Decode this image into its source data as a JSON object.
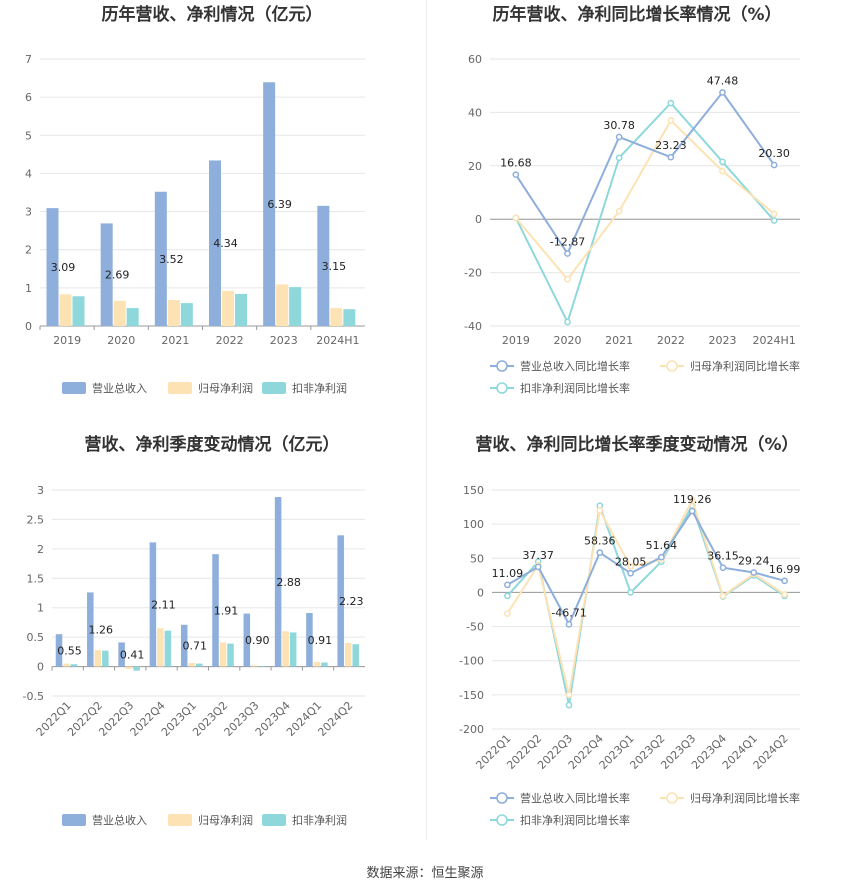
{
  "footer": {
    "source": "数据来源：恒生聚源"
  },
  "colors": {
    "revenue": "#8eaedb",
    "net_profit": "#fde2b4",
    "net_profit_excl": "#8ed8dc"
  },
  "chart_data": [
    {
      "type": "bar",
      "title": "历年营收、净利情况（亿元）",
      "categories": [
        "2019",
        "2020",
        "2021",
        "2022",
        "2023",
        "2024H1"
      ],
      "ylim": [
        0,
        7
      ],
      "yticks": [
        0,
        1,
        2,
        3,
        4,
        5,
        6,
        7
      ],
      "series": [
        {
          "name": "营业总收入",
          "values": [
            3.09,
            2.69,
            3.52,
            4.34,
            6.39,
            3.15
          ],
          "labels": [
            "3.09",
            "2.69",
            "3.52",
            "4.34",
            "6.39",
            "3.15"
          ]
        },
        {
          "name": "归母净利润",
          "values": [
            0.83,
            0.66,
            0.68,
            0.92,
            1.09,
            0.47
          ]
        },
        {
          "name": "扣非净利润",
          "values": [
            0.78,
            0.47,
            0.6,
            0.84,
            1.02,
            0.44
          ]
        }
      ],
      "legend": "bottom",
      "grid": true
    },
    {
      "type": "line",
      "title": "历年营收、净利同比增长率情况（%）",
      "categories": [
        "2019",
        "2020",
        "2021",
        "2022",
        "2023",
        "2024H1"
      ],
      "ylim": [
        -40,
        60
      ],
      "yticks": [
        -40,
        -20,
        0,
        20,
        40,
        60
      ],
      "series": [
        {
          "name": "营业总收入同比增长率",
          "values": [
            16.68,
            -12.87,
            30.78,
            23.23,
            47.48,
            20.3
          ],
          "labels": [
            "16.68",
            "-12.87",
            "30.78",
            "23.23",
            "47.48",
            "20.30"
          ]
        },
        {
          "name": "归母净利润同比增长率",
          "values": [
            0.5,
            -22.5,
            3.0,
            37.0,
            18.0,
            2.0
          ]
        },
        {
          "name": "扣非净利润同比增长率",
          "values": [
            0.5,
            -38.5,
            23.0,
            43.5,
            21.5,
            -0.5
          ]
        }
      ],
      "legend": "bottom",
      "grid": true
    },
    {
      "type": "bar",
      "title": "营收、净利季度变动情况（亿元）",
      "categories": [
        "2022Q1",
        "2022Q2",
        "2022Q3",
        "2022Q4",
        "2023Q1",
        "2023Q2",
        "2023Q3",
        "2023Q4",
        "2024Q1",
        "2024Q2"
      ],
      "ylim": [
        -0.5,
        3
      ],
      "yticks": [
        -0.5,
        0,
        0.5,
        1,
        1.5,
        2,
        2.5,
        3
      ],
      "series": [
        {
          "name": "营业总收入",
          "values": [
            0.55,
            1.26,
            0.41,
            2.11,
            0.71,
            1.91,
            0.9,
            2.88,
            0.91,
            2.23
          ],
          "labels": [
            "0.55",
            "1.26",
            "0.41",
            "2.11",
            "0.71",
            "1.91",
            "0.90",
            "2.88",
            "0.91",
            "2.23"
          ]
        },
        {
          "name": "归母净利润",
          "values": [
            0.05,
            0.28,
            -0.04,
            0.65,
            0.06,
            0.41,
            0.02,
            0.6,
            0.08,
            0.4
          ]
        },
        {
          "name": "扣非净利润",
          "values": [
            0.04,
            0.27,
            -0.07,
            0.61,
            0.05,
            0.39,
            0.01,
            0.58,
            0.07,
            0.38
          ]
        }
      ],
      "legend": "bottom",
      "grid": true
    },
    {
      "type": "line",
      "title": "营收、净利同比增长率季度变动情况（%）",
      "categories": [
        "2022Q1",
        "2022Q2",
        "2022Q3",
        "2022Q4",
        "2023Q1",
        "2023Q2",
        "2023Q3",
        "2023Q4",
        "2024Q1",
        "2024Q2"
      ],
      "ylim": [
        -200,
        150
      ],
      "yticks": [
        -200,
        -150,
        -100,
        -50,
        0,
        50,
        100,
        150
      ],
      "series": [
        {
          "name": "营业总收入同比增长率",
          "values": [
            11.09,
            37.37,
            -46.71,
            58.36,
            28.05,
            51.64,
            119.26,
            36.15,
            29.24,
            16.99
          ],
          "labels": [
            "11.09",
            "37.37",
            "-46.71",
            "58.36",
            "28.05",
            "51.64",
            "119.26",
            "36.15",
            "29.24",
            "16.99"
          ]
        },
        {
          "name": "归母净利润同比增长率",
          "values": [
            -31,
            40,
            -150,
            120,
            38,
            48,
            135,
            -5,
            27,
            -3
          ]
        },
        {
          "name": "扣非净利润同比增长率",
          "values": [
            -5,
            45,
            -165,
            127,
            0,
            45,
            127,
            -6,
            25,
            -5
          ]
        }
      ],
      "legend": "bottom",
      "grid": true
    }
  ]
}
